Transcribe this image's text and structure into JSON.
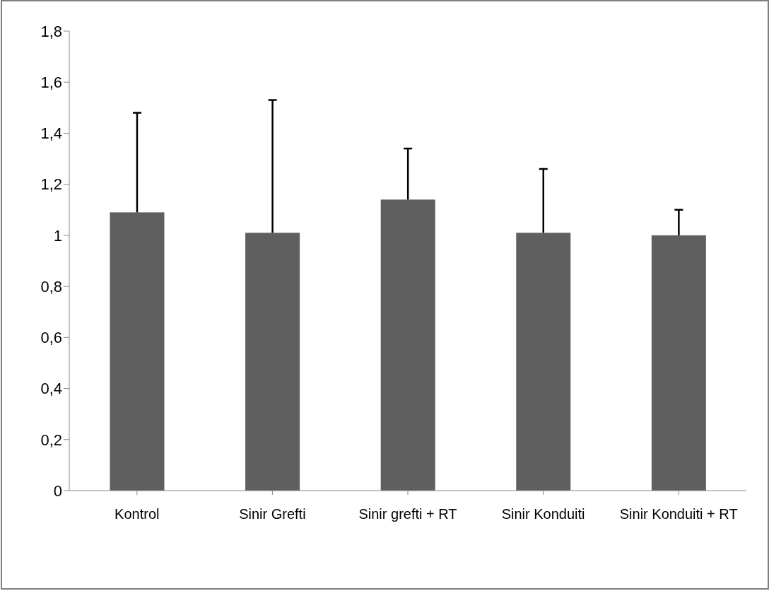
{
  "chart_data": {
    "type": "bar",
    "categories": [
      "Kontrol",
      "Sinir Grefti",
      "Sinir grefti + RT",
      "Sinir Konduiti",
      "Sinir Konduiti + RT"
    ],
    "values": [
      1.09,
      1.01,
      1.14,
      1.01,
      1.0
    ],
    "errors": [
      [
        1.09,
        1.48
      ],
      [
        1.01,
        1.53
      ],
      [
        1.14,
        1.34
      ],
      [
        1.01,
        1.26
      ],
      [
        1.0,
        1.1
      ]
    ],
    "color": "#5f5f5f",
    "ylim": [
      0,
      1.8
    ],
    "yticks": [
      0,
      {
        "value": 0.2,
        "label": "0,2"
      },
      {
        "value": 0.4,
        "label": "0,4"
      },
      {
        "value": 0.6,
        "label": "0,6"
      },
      {
        "value": 0.8,
        "label": "0,8"
      },
      1,
      {
        "value": 1.2,
        "label": "1,2"
      },
      {
        "value": 1.4,
        "label": "1,4"
      },
      {
        "value": 1.6,
        "label": "1,6"
      },
      {
        "value": 1.8,
        "label": "1,8"
      }
    ],
    "grid": false,
    "legend": false
  }
}
